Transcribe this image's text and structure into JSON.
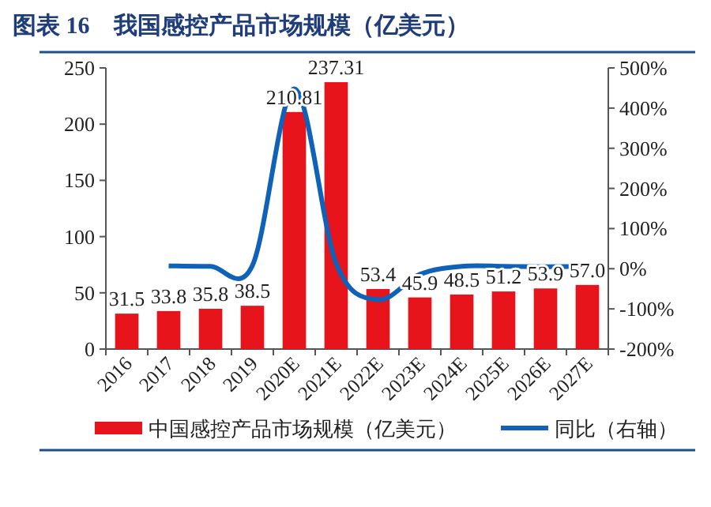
{
  "chart_data": {
    "type": "bar",
    "title": "图表 16　我国感控产品市场规模（亿美元）",
    "categories": [
      "2016",
      "2017",
      "2018",
      "2019",
      "2020E",
      "2021E",
      "2022E",
      "2023E",
      "2024E",
      "2025E",
      "2026E",
      "2027E"
    ],
    "series": [
      {
        "name": "中国感控产品市场规模（亿美元）",
        "color": "#e8141c",
        "values": [
          31.5,
          33.8,
          35.8,
          38.5,
          210.81,
          237.31,
          53.4,
          45.9,
          48.5,
          51.2,
          53.9,
          57.0
        ]
      },
      {
        "name": "同比（右轴）",
        "color": "#0f62b8",
        "type": "line",
        "axis": "y2",
        "values": [
          null,
          7,
          6,
          8,
          448,
          13,
          -77,
          -14,
          6,
          6,
          5,
          6
        ]
      }
    ],
    "value_labels": [
      "31.5",
      "33.8",
      "35.8",
      "38.5",
      "210.81",
      "237.31",
      "53.4",
      "45.9",
      "48.5",
      "51.2",
      "53.9",
      "57.0"
    ],
    "ylim": [
      0,
      250
    ],
    "yticks": [
      0,
      50,
      100,
      150,
      200,
      250
    ],
    "y2lim": [
      -200,
      500
    ],
    "y2ticks": [
      {
        "value": -200,
        "label": "-200%"
      },
      {
        "value": -100,
        "label": "-100%"
      },
      {
        "value": 0,
        "label": "0%"
      },
      {
        "value": 100,
        "label": "100%"
      },
      {
        "value": 200,
        "label": "200%"
      },
      {
        "value": 300,
        "label": "300%"
      },
      {
        "value": 400,
        "label": "400%"
      },
      {
        "value": 500,
        "label": "500%"
      }
    ],
    "legend": "bottom",
    "grid": false
  }
}
